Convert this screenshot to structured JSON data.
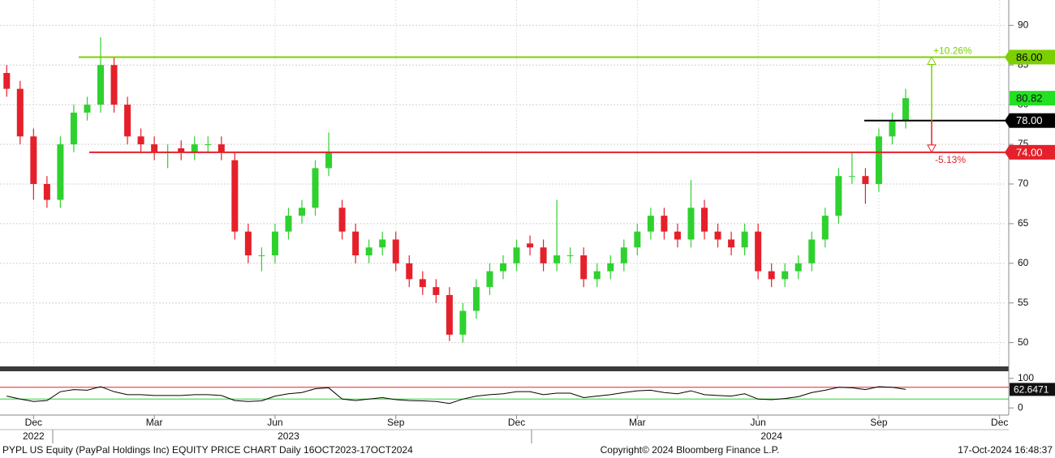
{
  "chart_data": [
    {
      "type": "candlestick",
      "categories": [
        null,
        null,
        "Dec",
        null,
        null,
        null,
        null,
        null,
        null,
        null,
        null,
        "Mar",
        null,
        null,
        null,
        null,
        null,
        null,
        null,
        null,
        "Jun",
        null,
        null,
        null,
        null,
        null,
        null,
        null,
        null,
        "Sep",
        null,
        null,
        null,
        null,
        null,
        null,
        null,
        null,
        "Dec",
        null,
        null,
        null,
        null,
        null,
        null,
        null,
        null,
        "Mar",
        null,
        null,
        null,
        null,
        null,
        null,
        null,
        null,
        "Jun",
        null,
        null,
        null,
        null,
        null,
        null,
        null,
        null,
        "Sep",
        null,
        null,
        null,
        null,
        null,
        null,
        null,
        null,
        "Dec"
      ],
      "year_categories": [
        null,
        null,
        "2022",
        null,
        null,
        null,
        null,
        null,
        null,
        null,
        null,
        null,
        null,
        null,
        null,
        null,
        null,
        null,
        null,
        null,
        null,
        "2023",
        null,
        null,
        null,
        null,
        null,
        null,
        null,
        null,
        null,
        null,
        null,
        null,
        null,
        null,
        null,
        null,
        null,
        null,
        null,
        null,
        null,
        null,
        null,
        null,
        null,
        null,
        null,
        null,
        null,
        null,
        null,
        null,
        null,
        null,
        null,
        "2024",
        null,
        null,
        null,
        null,
        null,
        null,
        null,
        null,
        null,
        null,
        null,
        null,
        null,
        null,
        null,
        null,
        null
      ],
      "open": [
        84,
        82,
        76,
        70,
        68,
        75,
        79,
        80,
        85,
        80,
        76,
        75,
        74,
        74.5,
        74,
        75,
        75,
        73,
        64,
        61,
        61,
        64,
        66,
        67,
        72,
        67,
        64,
        61,
        62,
        63,
        60,
        58,
        57,
        56,
        51,
        54,
        57,
        59,
        60,
        62.5,
        62,
        60,
        61,
        61,
        58,
        59,
        60,
        62,
        64,
        66,
        64,
        63,
        67,
        64,
        63,
        62,
        64,
        59,
        58,
        59,
        60,
        63,
        66,
        71,
        71,
        70,
        76,
        78,
        null,
        null,
        null,
        null,
        null,
        null,
        null
      ],
      "high": [
        85,
        83,
        77,
        71,
        76,
        80,
        81,
        88.5,
        86,
        81,
        77,
        76,
        75,
        75.5,
        76,
        76,
        76,
        74,
        65,
        62,
        65,
        67,
        68,
        73,
        76.5,
        68,
        65,
        63,
        64,
        64,
        61,
        59,
        58,
        57,
        55,
        58,
        60,
        61,
        63,
        63.5,
        63,
        68,
        62,
        62,
        60,
        61,
        63,
        65,
        67,
        67,
        65,
        70.5,
        68,
        65,
        64,
        65,
        65,
        60,
        60,
        61,
        64,
        67,
        72,
        74,
        72,
        77,
        79,
        82,
        null,
        null,
        null,
        null,
        null,
        null,
        null
      ],
      "low": [
        81,
        75,
        68,
        67,
        67,
        74,
        78,
        79,
        79,
        75,
        74,
        73,
        72,
        73,
        73,
        74,
        73,
        63,
        60,
        59,
        60,
        63,
        65,
        66,
        71,
        63,
        60,
        60,
        61,
        59,
        57,
        56,
        55,
        50.2,
        50,
        53,
        56,
        58,
        59,
        61,
        59,
        59,
        60,
        57,
        57,
        58,
        59,
        61,
        63,
        63,
        62,
        62,
        63,
        62,
        61,
        61,
        58,
        57,
        57,
        58,
        59,
        62,
        65,
        70,
        67.5,
        69,
        75,
        77,
        null,
        null,
        null,
        null,
        null,
        null,
        null
      ],
      "close": [
        82,
        76,
        70,
        68,
        75,
        79,
        80,
        85,
        80,
        76,
        75,
        74,
        74,
        74,
        75,
        75,
        74,
        64,
        61,
        61,
        64,
        66,
        67,
        72,
        74,
        64,
        61,
        62,
        63,
        60,
        58,
        57,
        56,
        51,
        54,
        57,
        59,
        60,
        62,
        62,
        60,
        61,
        61,
        58,
        59,
        60,
        62,
        64,
        66,
        64,
        63,
        67,
        64,
        63,
        62,
        64,
        59,
        58,
        59,
        60,
        63,
        66,
        71,
        71,
        70,
        76,
        78,
        80.82,
        null,
        null,
        null,
        null,
        null,
        null,
        null
      ],
      "up_color": "#2fd12f",
      "down_color": "#e5202a",
      "ylim": [
        47,
        93.2
      ],
      "yticks": [
        50,
        55,
        60,
        65,
        70,
        75,
        80,
        85,
        90
      ],
      "grid": true,
      "levels": {
        "values": [
          86,
          78,
          74
        ],
        "value_labels": [
          "86.00",
          "78.00",
          "74.00"
        ],
        "colors": [
          "#7ccf00",
          "#000000",
          "#e5202a"
        ]
      },
      "annotations": [
        "+10.26%",
        "-5.13%"
      ]
    },
    {
      "type": "line",
      "values": [
        40,
        30,
        22,
        25,
        55,
        62,
        60,
        72,
        55,
        45,
        45,
        42,
        42,
        42,
        45,
        45,
        42,
        25,
        22,
        24,
        40,
        48,
        52,
        65,
        68,
        30,
        25,
        30,
        35,
        28,
        25,
        24,
        22,
        15,
        30,
        40,
        45,
        48,
        55,
        55,
        45,
        50,
        50,
        35,
        40,
        45,
        52,
        58,
        60,
        52,
        48,
        58,
        45,
        42,
        40,
        48,
        30,
        28,
        32,
        38,
        52,
        60,
        70,
        68,
        62,
        72,
        70,
        62.6471,
        null,
        null,
        null,
        null,
        null,
        null,
        null
      ],
      "color": "#000000",
      "ylim": [
        -24,
        124
      ],
      "yticks": [
        0,
        100
      ],
      "bands": [
        70,
        30
      ],
      "band_colors": [
        "#e5202a",
        "#2fd12f"
      ]
    }
  ],
  "footer": {
    "left": "PYPL US Equity (PayPal Holdings Inc) EQUITY PRICE CHART  Daily 16OCT2023-17OCT2024",
    "center": "Copyright© 2024 Bloomberg Finance L.P.",
    "right": "17-Oct-2024 16:48:37"
  }
}
